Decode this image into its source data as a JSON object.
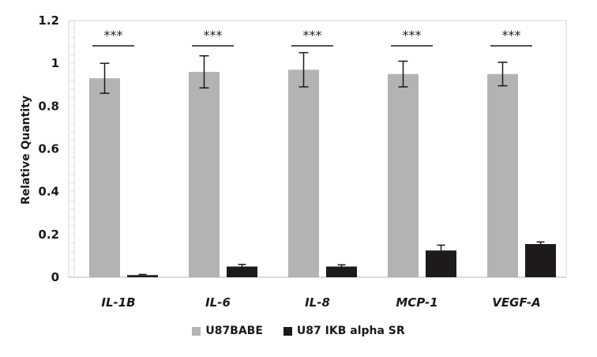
{
  "chart_data": {
    "type": "bar",
    "title": "",
    "xlabel": "",
    "ylabel": "Relative Quantity",
    "ylim": [
      0,
      1.2
    ],
    "yticks": [
      "0",
      "0.2",
      "0.4",
      "0.6",
      "0.8",
      "1",
      "1.2"
    ],
    "grid": false,
    "legend_position": "bottom",
    "categories": [
      "IL-1B",
      "IL-6",
      "IL-8",
      "MCP-1",
      "VEGF-A"
    ],
    "series": [
      {
        "name": "U87BABE",
        "color": "#b3b3b3",
        "values": [
          0.93,
          0.96,
          0.97,
          0.95,
          0.95
        ],
        "error": [
          0.07,
          0.075,
          0.08,
          0.06,
          0.055
        ]
      },
      {
        "name": "U87 IKB alpha SR",
        "color": "#1e1a1a",
        "values": [
          0.01,
          0.05,
          0.05,
          0.125,
          0.155
        ],
        "error": [
          0.003,
          0.01,
          0.008,
          0.025,
          0.01
        ]
      }
    ],
    "annotations": [
      "***",
      "***",
      "***",
      "***",
      "***"
    ]
  },
  "legend": {
    "items": [
      {
        "label": "U87BABE",
        "color": "#b3b3b3"
      },
      {
        "label": "U87 IKB alpha SR",
        "color": "#1e1a1a"
      }
    ]
  }
}
